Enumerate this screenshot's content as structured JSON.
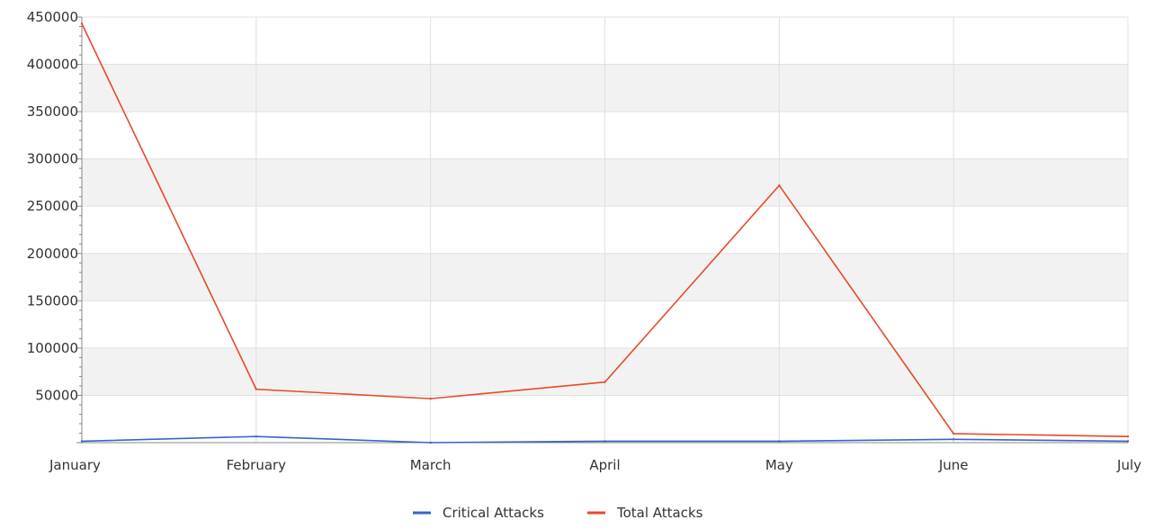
{
  "chart_data": {
    "type": "line",
    "title": "",
    "xlabel": "",
    "ylabel": "",
    "categories": [
      "January",
      "February",
      "March",
      "April",
      "May",
      "June",
      "July"
    ],
    "ylim": [
      0,
      450000
    ],
    "yticks": [
      50000,
      100000,
      150000,
      200000,
      250000,
      300000,
      350000,
      400000,
      450000
    ],
    "ytick_labels": [
      "50000",
      "100000",
      "150000",
      "200000",
      "250000",
      "300000",
      "350000",
      "400000",
      "450000"
    ],
    "grid": true,
    "legend_position": "bottom-center",
    "series": [
      {
        "name": "Critical Attacks",
        "color": "#3a63c8",
        "values": [
          1500,
          6500,
          0,
          1500,
          1500,
          3500,
          1500
        ]
      },
      {
        "name": "Total Attacks",
        "color": "#e8492a",
        "values": [
          443000,
          56500,
          46500,
          64000,
          272000,
          9500,
          6500
        ]
      }
    ]
  }
}
